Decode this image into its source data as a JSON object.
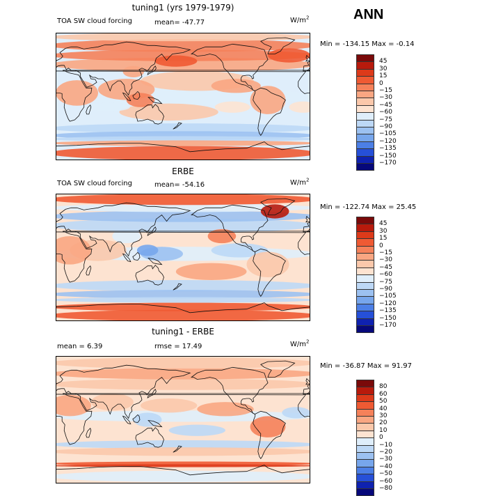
{
  "header": {
    "season": "ANN"
  },
  "panels": [
    {
      "title": "tuning1 (yrs 1979-1979)",
      "left_label": "TOA SW cloud forcing",
      "mean_label": "mean= -47.77",
      "units_base": "W/m",
      "units_exp": "2",
      "minmax": "Min = -134.15  Max =   -0.14",
      "levels": [
        "45",
        "30",
        "15",
        "0",
        "−15",
        "−30",
        "−45",
        "−60",
        "−75",
        "−90",
        "−105",
        "−120",
        "−135",
        "−150",
        "−170"
      ],
      "colors": [
        "#7a0a0a",
        "#b81a0c",
        "#dd3a1a",
        "#ef5a33",
        "#f5815a",
        "#f9a682",
        "#fbc8ab",
        "#fde3d1",
        "#dfeefb",
        "#bdd8f6",
        "#9cc1f1",
        "#77a6ec",
        "#4c7fe6",
        "#2650d8",
        "#0f22b0",
        "#06087a"
      ],
      "pattern": "model"
    },
    {
      "title": "ERBE",
      "left_label": "TOA SW cloud forcing",
      "mean_label": "mean= -54.16",
      "units_base": "W/m",
      "units_exp": "2",
      "minmax": "Min = -122.74  Max =   25.45",
      "levels": [
        "45",
        "30",
        "15",
        "0",
        "−15",
        "−30",
        "−45",
        "−60",
        "−75",
        "−90",
        "−105",
        "−120",
        "−135",
        "−150",
        "−170"
      ],
      "colors": [
        "#7a0a0a",
        "#b81a0c",
        "#dd3a1a",
        "#ef5a33",
        "#f5815a",
        "#f9a682",
        "#fbc8ab",
        "#fde3d1",
        "#dfeefb",
        "#bdd8f6",
        "#9cc1f1",
        "#77a6ec",
        "#4c7fe6",
        "#2650d8",
        "#0f22b0",
        "#06087a"
      ],
      "pattern": "obs"
    },
    {
      "title": "tuning1 - ERBE",
      "mean_label": "mean =    6.39",
      "rmse_label": "rmse =   17.49",
      "units_base": "W/m",
      "units_exp": "2",
      "minmax": "Min = -36.87  Max =   91.97",
      "levels": [
        "80",
        "60",
        "50",
        "40",
        "30",
        "20",
        "10",
        "0",
        "−10",
        "−20",
        "−30",
        "−40",
        "−50",
        "−60",
        "−80"
      ],
      "colors": [
        "#7a0a0a",
        "#b81a0c",
        "#dd3a1a",
        "#ef5a33",
        "#f5815a",
        "#f9a682",
        "#fbc8ab",
        "#fde3d1",
        "#dfeefb",
        "#bdd8f6",
        "#9cc1f1",
        "#77a6ec",
        "#4c7fe6",
        "#2650d8",
        "#0f22b0",
        "#06087a"
      ],
      "pattern": "diff"
    }
  ]
}
